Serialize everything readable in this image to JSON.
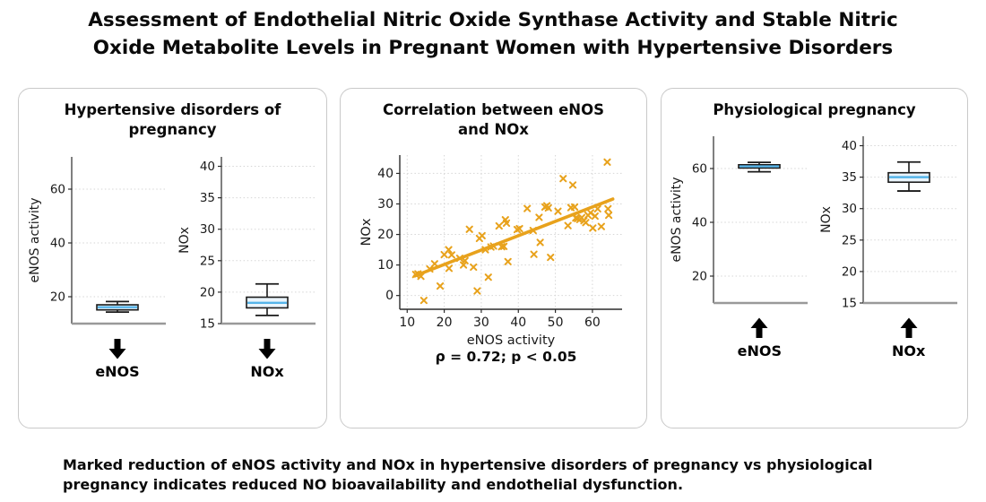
{
  "title": "Assessment of Endothelial Nitric Oxide Synthase Activity and Stable Nitric Oxide Metabolite Levels in Pregnant Women with Hypertensive Disorders",
  "caption": "Marked reduction of eNOS activity and NOx in hypertensive disorders of pregnancy vs physiological pregnancy indicates reduced NO bioavailability and endothelial dysfunction.",
  "colors": {
    "scatter": "#E8A21C",
    "trendline": "#E8A21C",
    "median": "#56B4E9",
    "box_fill": "#EAF4FB",
    "box_edge": "#1a1a1a",
    "grid": "#d6d6d6",
    "axis": "#2b2b2b",
    "baseline": "#999999",
    "panel_border": "#c9c9c9",
    "arrow": "#000000"
  },
  "chart_data": [
    {
      "type": "box",
      "panel_title": "Hypertensive disorders of pregnancy",
      "trend_arrow": "down",
      "boxes": [
        {
          "label": "eNOS",
          "ylabel": "eNOS activity",
          "yticks": [
            20,
            40,
            60
          ],
          "ylim": [
            10,
            72
          ],
          "stats": {
            "whisker_low": 14.3,
            "q1": 15.1,
            "median": 16.1,
            "q3": 17.0,
            "whisker_high": 18.2
          }
        },
        {
          "label": "NOx",
          "ylabel": "NOx",
          "yticks": [
            15,
            20,
            25,
            30,
            35,
            40
          ],
          "ylim": [
            15,
            41.5
          ],
          "stats": {
            "whisker_low": 16.3,
            "q1": 17.5,
            "median": 18.3,
            "q3": 19.2,
            "whisker_high": 21.3
          }
        }
      ]
    },
    {
      "type": "scatter",
      "panel_title": "Correlation between eNOS and NOx",
      "xlabel": "eNOS activity",
      "ylabel": "NOx",
      "xticks": [
        10,
        20,
        30,
        40,
        50,
        60
      ],
      "yticks": [
        0,
        10,
        20,
        30,
        40
      ],
      "xlim": [
        8,
        68
      ],
      "ylim": [
        -4.5,
        46
      ],
      "annotation": "ρ = 0.72; p < 0.05",
      "trendline": {
        "x": [
          12,
          65.5
        ],
        "y": [
          6.4,
          31.6
        ]
      },
      "points": [
        [
          12.3,
          6.9
        ],
        [
          12.9,
          7.1
        ],
        [
          13.7,
          6.3
        ],
        [
          14.5,
          -1.6
        ],
        [
          16.1,
          8.7
        ],
        [
          17.4,
          10.4
        ],
        [
          18.9,
          3.1
        ],
        [
          20.0,
          13.4
        ],
        [
          21.2,
          15.0
        ],
        [
          21.3,
          8.9
        ],
        [
          22.0,
          13.3
        ],
        [
          24.2,
          12.2
        ],
        [
          25.2,
          10.0
        ],
        [
          25.6,
          11.4
        ],
        [
          26.8,
          21.7
        ],
        [
          27.9,
          9.3
        ],
        [
          28.9,
          1.5
        ],
        [
          29.5,
          18.7
        ],
        [
          30.2,
          19.6
        ],
        [
          31.1,
          15.0
        ],
        [
          31.9,
          6.0
        ],
        [
          32.6,
          15.9
        ],
        [
          33.3,
          16.2
        ],
        [
          34.8,
          22.8
        ],
        [
          35.5,
          16.0
        ],
        [
          36.1,
          16.1
        ],
        [
          36.5,
          24.8
        ],
        [
          36.8,
          23.7
        ],
        [
          37.2,
          11.1
        ],
        [
          39.7,
          21.6
        ],
        [
          40.3,
          21.9
        ],
        [
          42.4,
          28.5
        ],
        [
          44.0,
          21.3
        ],
        [
          44.2,
          13.5
        ],
        [
          45.6,
          25.6
        ],
        [
          45.9,
          17.4
        ],
        [
          47.2,
          29.0
        ],
        [
          47.7,
          29.4
        ],
        [
          48.1,
          28.7
        ],
        [
          48.7,
          12.5
        ],
        [
          50.7,
          27.6
        ],
        [
          52.1,
          38.3
        ],
        [
          53.4,
          22.9
        ],
        [
          54.2,
          28.8
        ],
        [
          54.7,
          36.2
        ],
        [
          55.2,
          29.0
        ],
        [
          55.5,
          25.4
        ],
        [
          56.0,
          25.2
        ],
        [
          56.6,
          24.9
        ],
        [
          57.1,
          25.5
        ],
        [
          57.7,
          24.5
        ],
        [
          58.2,
          23.9
        ],
        [
          58.8,
          26.3
        ],
        [
          59.5,
          27.1
        ],
        [
          60.1,
          22.1
        ],
        [
          60.7,
          26.0
        ],
        [
          61.4,
          28.4
        ],
        [
          62.4,
          22.6
        ],
        [
          64.0,
          43.7
        ],
        [
          64.2,
          28.4
        ],
        [
          64.4,
          26.3
        ]
      ]
    },
    {
      "type": "box",
      "panel_title": "Physiological pregnancy",
      "trend_arrow": "up",
      "boxes": [
        {
          "label": "eNOS",
          "ylabel": "eNOS activity",
          "yticks": [
            20,
            40,
            60
          ],
          "ylim": [
            10,
            72
          ],
          "stats": {
            "whisker_low": 58.8,
            "q1": 60.2,
            "median": 60.8,
            "q3": 61.4,
            "whisker_high": 62.3
          }
        },
        {
          "label": "NOx",
          "ylabel": "NOx",
          "yticks": [
            15,
            20,
            25,
            30,
            35,
            40
          ],
          "ylim": [
            15,
            41.5
          ],
          "stats": {
            "whisker_low": 32.8,
            "q1": 34.2,
            "median": 35.0,
            "q3": 35.7,
            "whisker_high": 37.4
          }
        }
      ]
    }
  ]
}
